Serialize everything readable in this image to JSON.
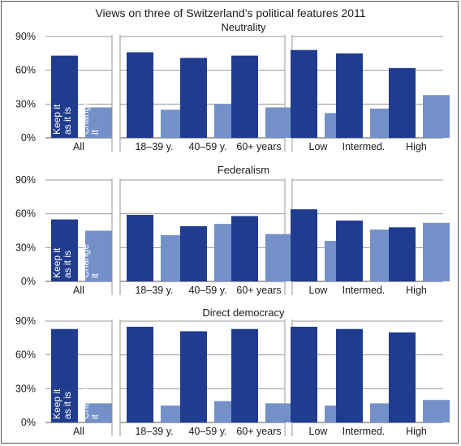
{
  "chart_data": {
    "type": "bar",
    "title": "Views on three of Switzerland’s political features 2011",
    "ylim": [
      0,
      90
    ],
    "y_ticks": [
      "0%",
      "30%",
      "60%",
      "90%"
    ],
    "y_tick_values": [
      0,
      30,
      60,
      90
    ],
    "grid": true,
    "groups": [
      [
        "All"
      ],
      [
        "18–39 y.",
        "40–59 y.",
        "60+ years"
      ],
      [
        "Low",
        "Intermed.",
        "High"
      ]
    ],
    "series": [
      {
        "name": "Keep it as it is",
        "color": "#1f3c8f"
      },
      {
        "name": "Change it",
        "color": "#7391c8"
      }
    ],
    "in_bar_labels": {
      "keep": [
        "Keep it",
        "as it is"
      ],
      "change": [
        "Change",
        "it"
      ]
    },
    "panels": [
      {
        "subtitle": "Neutrality",
        "keep": [
          73,
          76,
          71,
          73,
          78,
          75,
          62
        ],
        "change": [
          27,
          25,
          30,
          27,
          22,
          26,
          38
        ]
      },
      {
        "subtitle": "Federalism",
        "keep": [
          55,
          59,
          49,
          58,
          64,
          54,
          48
        ],
        "change": [
          45,
          41,
          51,
          42,
          36,
          46,
          52
        ]
      },
      {
        "subtitle": "Direct democracy",
        "keep": [
          83,
          85,
          81,
          83,
          85,
          83,
          80
        ],
        "change": [
          17,
          15,
          19,
          17,
          15,
          17,
          20
        ]
      }
    ]
  }
}
